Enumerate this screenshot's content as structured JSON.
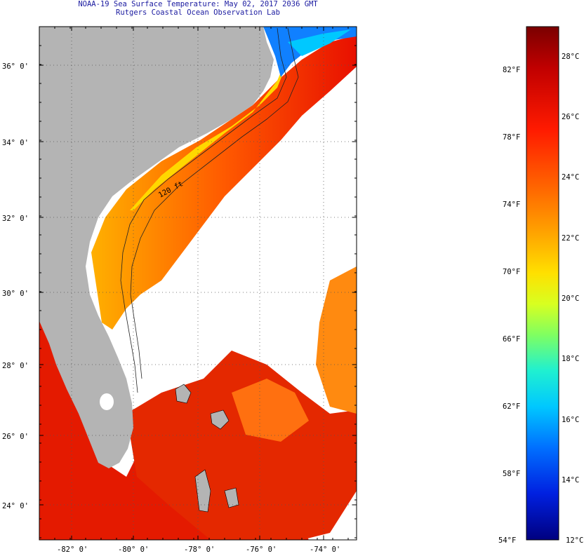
{
  "header": {
    "title": "NOAA-19 Sea Surface Temperature:  May 02, 2017 2036 GMT",
    "subtitle": "Rutgers Coastal Ocean Observation Lab"
  },
  "map": {
    "lat_labels": [
      "36° 0'",
      "34° 0'",
      "32° 0'",
      "30° 0'",
      "28° 0'",
      "26° 0'",
      "24° 0'"
    ],
    "lon_labels": [
      "-82° 0'",
      "-80° 0'",
      "-78° 0'",
      "-76° 0'",
      "-74° 0'"
    ],
    "contour_label": "120 ft",
    "colors": {
      "land": "#b4b4b4",
      "nodata": "#ffffff",
      "grid": "#555555"
    }
  },
  "colorbar": {
    "f_labels": [
      "82°F",
      "78°F",
      "74°F",
      "70°F",
      "66°F",
      "62°F",
      "58°F",
      "54°F"
    ],
    "c_labels": [
      "28°C",
      "26°C",
      "24°C",
      "22°C",
      "20°C",
      "18°C",
      "16°C",
      "14°C",
      "12°C"
    ],
    "gradient": [
      "#7a0000",
      "#c00000",
      "#ff1a00",
      "#ff6a00",
      "#ffa200",
      "#ffe000",
      "#d8ff20",
      "#80ff60",
      "#20f0d0",
      "#00c8ff",
      "#0070ff",
      "#0020e0",
      "#000080"
    ]
  }
}
